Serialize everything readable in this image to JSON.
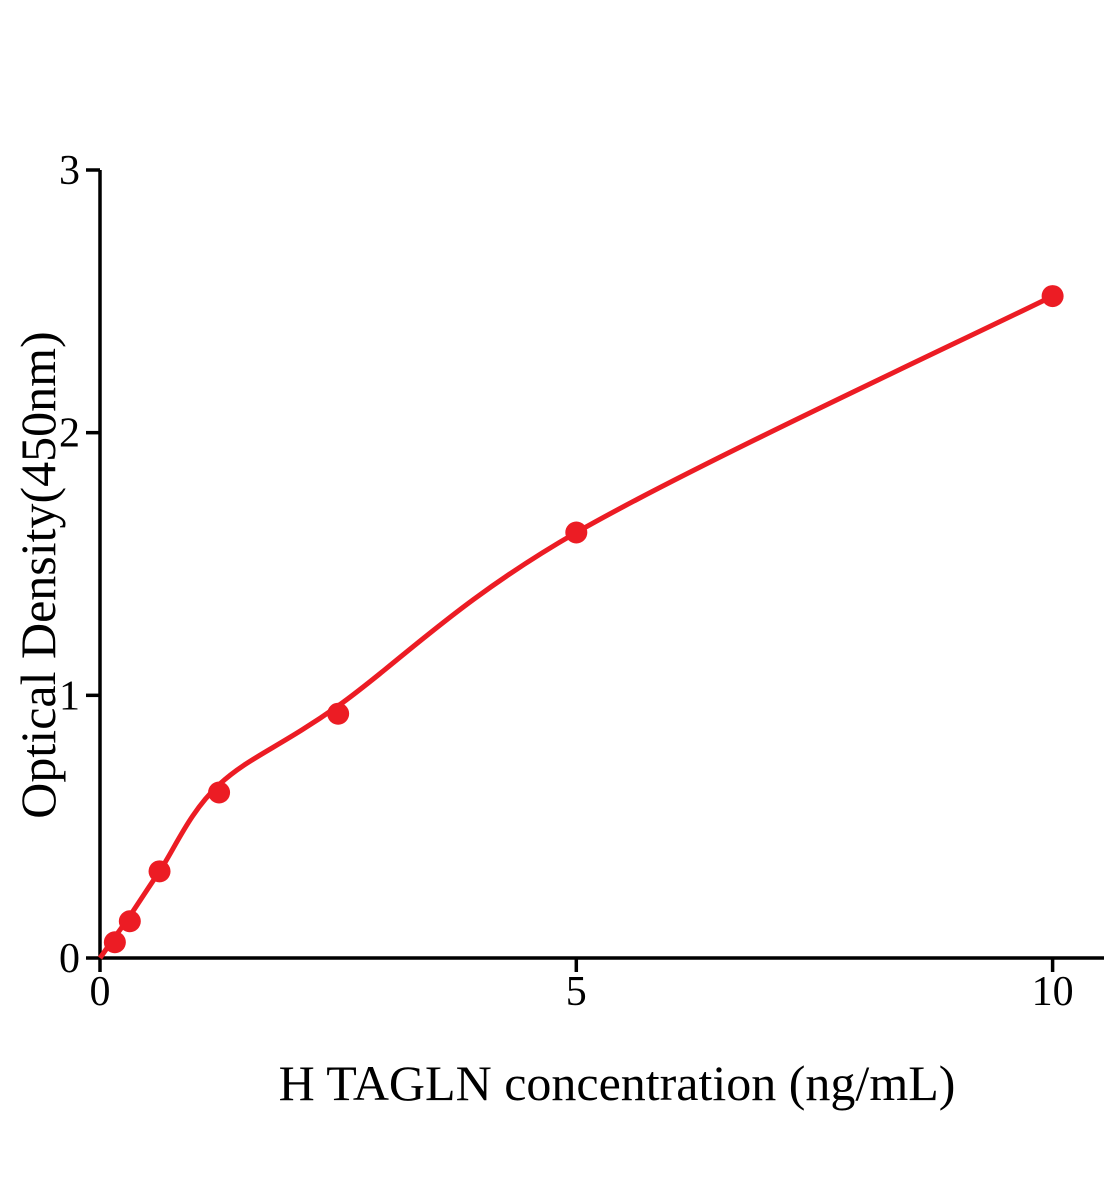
{
  "figure": {
    "background_color": "#ffffff",
    "text_color": "#000000"
  },
  "chart_data": {
    "type": "scatter",
    "title": "",
    "xlabel": "H TAGLN concentration (ng/mL)",
    "ylabel": "Optical Density(450nm)",
    "xlim": [
      0,
      10.55
    ],
    "ylim": [
      0,
      3
    ],
    "x_ticks": [
      0,
      5,
      10
    ],
    "y_ticks": [
      0,
      1,
      2,
      3
    ],
    "grid": false,
    "legend": false,
    "axis_color": "#000000",
    "series": [
      {
        "name": "standard-points",
        "marker": "circle",
        "color": "#EC1C24",
        "x": [
          0.156,
          0.313,
          0.625,
          1.25,
          2.5,
          5,
          10
        ],
        "y": [
          0.06,
          0.14,
          0.33,
          0.63,
          0.93,
          1.62,
          2.52
        ]
      }
    ],
    "fit_curve": {
      "name": "fitted-standard-curve",
      "color": "#EC1C24",
      "x": [
        0,
        0.156,
        0.313,
        0.625,
        1.25,
        2.5,
        5,
        10
      ],
      "y": [
        0.0,
        0.08,
        0.16,
        0.33,
        0.66,
        0.96,
        1.62,
        2.52
      ]
    }
  }
}
